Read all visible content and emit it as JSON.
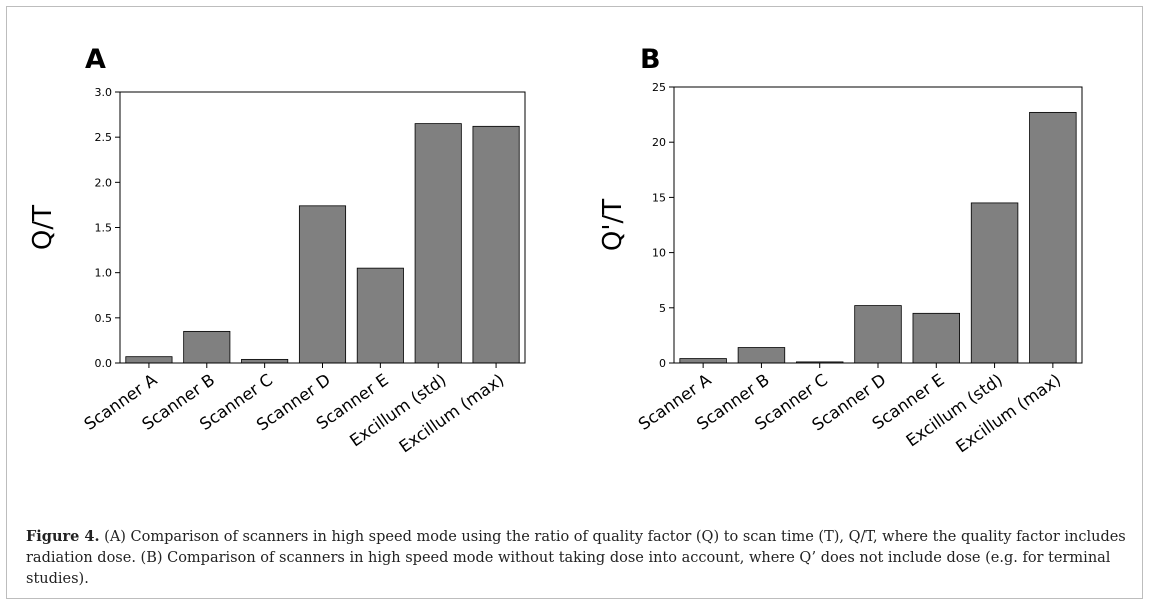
{
  "chart_data": [
    {
      "panel_label": "A",
      "type": "bar",
      "ylabel": "Q/T",
      "xlabel": "",
      "categories": [
        "Scanner A",
        "Scanner B",
        "Scanner C",
        "Scanner D",
        "Scanner E",
        "Excillum (std)",
        "Excillum (max)"
      ],
      "values": [
        0.07,
        0.35,
        0.04,
        1.74,
        1.05,
        2.65,
        2.62
      ],
      "ylim": [
        0,
        3.0
      ],
      "yticks": [
        "0.0",
        "0.5",
        "1.0",
        "1.5",
        "2.0",
        "2.5",
        "3.0"
      ],
      "grid": false,
      "bar_color": "#808080"
    },
    {
      "panel_label": "B",
      "type": "bar",
      "ylabel": "Q'/T",
      "xlabel": "",
      "categories": [
        "Scanner A",
        "Scanner B",
        "Scanner C",
        "Scanner D",
        "Scanner E",
        "Excillum (std)",
        "Excillum (max)"
      ],
      "values": [
        0.4,
        1.4,
        0.1,
        5.2,
        4.5,
        14.5,
        22.7
      ],
      "ylim": [
        0,
        25
      ],
      "yticks": [
        "0",
        "5",
        "10",
        "15",
        "20",
        "25"
      ],
      "grid": false,
      "bar_color": "#808080"
    }
  ],
  "caption": {
    "label": "Figure 4.",
    "text": " (A) Comparison of scanners in high speed mode using the ratio of quality factor (Q) to scan time (T), Q/T, where the quality factor includes radiation dose. (B) Comparison of scanners in high speed mode without taking dose into account, where Q’ does not include dose (e.g. for terminal studies)."
  }
}
